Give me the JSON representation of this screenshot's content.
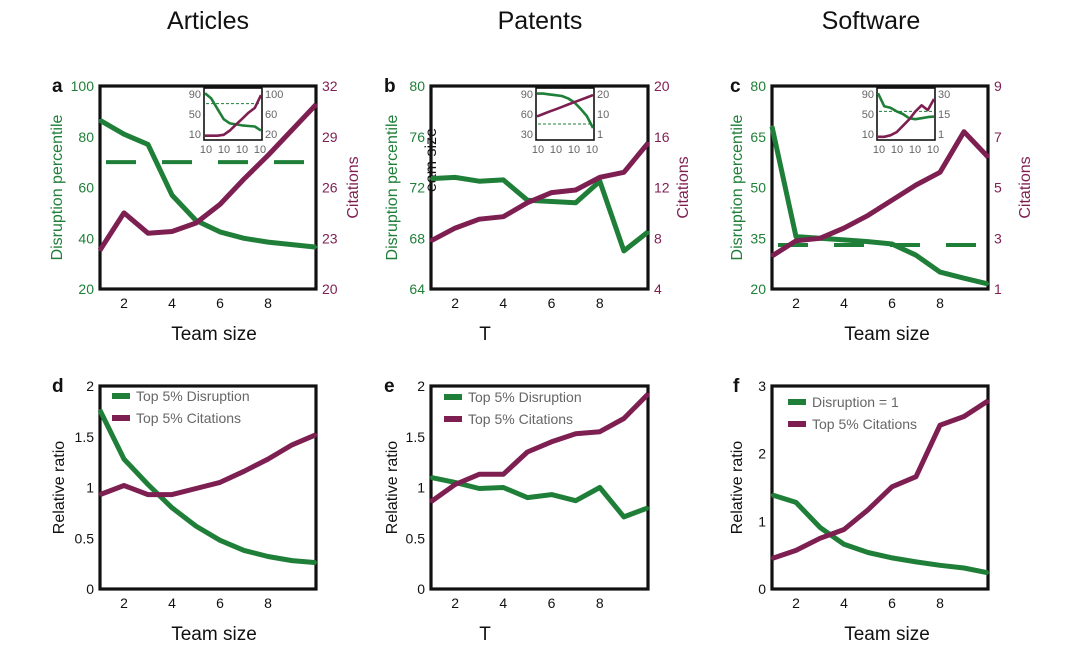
{
  "colors": {
    "green": "#1f7f38",
    "purple": "#7e1f52",
    "frame": "#111111"
  },
  "column_titles": [
    "Articles",
    "Patents",
    "Software"
  ],
  "chart_data": [
    {
      "panel": "a",
      "type": "line",
      "xlabel": "Team size",
      "xticks": [
        2,
        4,
        6,
        8
      ],
      "xlim": [
        1,
        10
      ],
      "ylabel": "Disruption percentile",
      "yticks": [
        "20",
        "40",
        "60",
        "80",
        "100"
      ],
      "ylim": [
        20,
        100
      ],
      "y2label": "Citations",
      "y2ticks": [
        "20",
        "23",
        "26",
        "29",
        "32"
      ],
      "y2lim": [
        20,
        32
      ],
      "x": [
        1,
        2,
        3,
        4,
        5,
        6,
        7,
        8,
        9,
        10
      ],
      "series": [
        {
          "color": "green",
          "axis": "left",
          "values": [
            86.5,
            81,
            77,
            57,
            47,
            42.5,
            40,
            38.5,
            37.5,
            36.5
          ]
        },
        {
          "color": "purple",
          "axis": "right",
          "values": [
            22.3,
            24.5,
            23.3,
            23.4,
            23.9,
            25,
            26.5,
            27.9,
            29.4,
            30.9
          ]
        }
      ],
      "baseline": {
        "color": "green",
        "axis": "left",
        "value": 70
      },
      "inset": {
        "x": [
          1,
          2,
          3,
          4,
          5,
          6,
          7,
          8,
          9,
          10
        ],
        "xticks": [
          "10",
          "10",
          "10",
          "10"
        ],
        "yticks": [
          "10",
          "50",
          "90"
        ],
        "y2ticks": [
          "20",
          "60",
          "100"
        ],
        "ylim": [
          0,
          100
        ],
        "y2lim": [
          0,
          110
        ],
        "series": [
          {
            "color": "green",
            "axis": "left",
            "values": [
              90,
              80,
              60,
              40,
              32,
              30,
              28,
              27,
              26,
              18
            ]
          },
          {
            "color": "purple",
            "axis": "right",
            "values": [
              9,
              9,
              9,
              11,
              20,
              33,
              45,
              58,
              68,
              95
            ]
          }
        ],
        "baseline": {
          "axis": "left",
          "value": 70
        }
      }
    },
    {
      "panel": "b",
      "type": "line",
      "xlabel": "T",
      "xticks": [
        2,
        4,
        6,
        8
      ],
      "xlim": [
        1,
        10
      ],
      "ylabel": "Disruption percentile",
      "yticks": [
        "64",
        "68",
        "72",
        "76",
        "80"
      ],
      "ylim": [
        64,
        80
      ],
      "y2label": "Citations",
      "y2ticks": [
        "4",
        "8",
        "12",
        "16",
        "20"
      ],
      "y2lim": [
        4,
        20
      ],
      "overlay_label": "eam size",
      "x": [
        1,
        2,
        3,
        4,
        5,
        6,
        7,
        8,
        9,
        10
      ],
      "series": [
        {
          "color": "green",
          "axis": "left",
          "values": [
            72.7,
            72.8,
            72.5,
            72.6,
            71,
            70.9,
            70.8,
            72.5,
            67,
            68.5
          ]
        },
        {
          "color": "purple",
          "axis": "right",
          "values": [
            7.8,
            8.8,
            9.5,
            9.7,
            10.8,
            11.6,
            11.8,
            12.8,
            13.2,
            15.5
          ]
        }
      ],
      "inset": {
        "x": [
          1,
          2,
          3,
          4,
          5,
          6,
          7,
          8,
          9,
          10
        ],
        "xticks": [
          "10",
          "10",
          "10",
          "10"
        ],
        "yticks": [
          "30",
          "60",
          "90"
        ],
        "y2ticks": [
          "1",
          "10",
          "20"
        ],
        "ylim": [
          25,
          90
        ],
        "y2lim": [
          0,
          22
        ],
        "series": [
          {
            "color": "green",
            "axis": "left",
            "values": [
              83,
              83,
              82,
              81,
              80,
              77,
              72,
              64,
              55,
              40
            ]
          },
          {
            "color": "purple",
            "axis": "right",
            "values": [
              10,
              11,
              12,
              13,
              14,
              15,
              16,
              17,
              18,
              19
            ]
          }
        ],
        "baseline": {
          "axis": "left",
          "value": 45
        }
      }
    },
    {
      "panel": "c",
      "type": "line",
      "xlabel": "Team size",
      "xticks": [
        2,
        4,
        6,
        8
      ],
      "xlim": [
        1,
        10
      ],
      "ylabel": "Disruption percentile",
      "yticks": [
        "20",
        "35",
        "50",
        "65",
        "80"
      ],
      "ylim": [
        20,
        80
      ],
      "y2label": "Citations",
      "y2ticks": [
        "1",
        "3",
        "5",
        "7",
        "9"
      ],
      "y2lim": [
        1,
        9
      ],
      "x": [
        1,
        2,
        3,
        4,
        5,
        6,
        7,
        8,
        9,
        10
      ],
      "series": [
        {
          "color": "green",
          "axis": "left",
          "values": [
            68,
            35.5,
            35,
            34.5,
            34,
            33.3,
            30,
            25,
            23.2,
            21.5
          ]
        },
        {
          "color": "purple",
          "axis": "right",
          "values": [
            2.3,
            2.9,
            3.0,
            3.4,
            3.9,
            4.5,
            5.1,
            5.6,
            7.2,
            6.2
          ]
        }
      ],
      "baseline": {
        "color": "green",
        "axis": "left",
        "value": 33
      },
      "inset": {
        "x": [
          1,
          2,
          3,
          4,
          5,
          6,
          7,
          8,
          9,
          10
        ],
        "xticks": [
          "10",
          "10",
          "10",
          "10"
        ],
        "yticks": [
          "10",
          "50",
          "90"
        ],
        "y2ticks": [
          "1",
          "15",
          "30"
        ],
        "ylim": [
          0,
          100
        ],
        "y2lim": [
          0,
          33
        ],
        "series": [
          {
            "color": "green",
            "axis": "left",
            "values": [
              90,
              65,
              62,
              55,
              50,
              42,
              40,
              42,
              44,
              45
            ]
          },
          {
            "color": "purple",
            "axis": "right",
            "values": [
              2,
              2,
              3,
              5,
              9,
              13,
              18,
              22,
              19,
              26
            ]
          }
        ],
        "baseline": {
          "axis": "left",
          "value": 55
        }
      }
    },
    {
      "panel": "d",
      "type": "line",
      "xlabel": "Team size",
      "xticks": [
        2,
        4,
        6,
        8
      ],
      "xlim": [
        1,
        10
      ],
      "ylabel": "Relative ratio",
      "yticks": [
        "0",
        "0.5",
        "1",
        "1.5",
        "2"
      ],
      "ylim": [
        0,
        2
      ],
      "x": [
        1,
        2,
        3,
        4,
        5,
        6,
        7,
        8,
        9,
        10
      ],
      "legend": [
        "Top 5% Disruption",
        "Top 5%  Citations"
      ],
      "series": [
        {
          "name": "Top 5% Disruption",
          "color": "green",
          "values": [
            1.76,
            1.28,
            1.03,
            0.8,
            0.62,
            0.48,
            0.38,
            0.32,
            0.28,
            0.26
          ]
        },
        {
          "name": "Top 5%  Citations",
          "color": "purple",
          "values": [
            0.93,
            1.02,
            0.93,
            0.93,
            0.99,
            1.05,
            1.16,
            1.28,
            1.42,
            1.52
          ]
        }
      ]
    },
    {
      "panel": "e",
      "type": "line",
      "xlabel": "T",
      "xticks": [
        2,
        4,
        6,
        8
      ],
      "xlim": [
        1,
        10
      ],
      "ylabel": "Relative ratio",
      "yticks": [
        "0",
        "0.5",
        "1",
        "1.5",
        "2"
      ],
      "ylim": [
        0,
        2
      ],
      "x": [
        1,
        2,
        3,
        4,
        5,
        6,
        7,
        8,
        9,
        10
      ],
      "legend": [
        "Top 5% Disruption",
        "Top 5%  Citations"
      ],
      "series": [
        {
          "name": "Top 5% Disruption",
          "color": "green",
          "values": [
            1.1,
            1.05,
            0.99,
            1.0,
            0.9,
            0.93,
            0.87,
            1.0,
            0.71,
            0.8
          ]
        },
        {
          "name": "Top 5%  Citations",
          "color": "purple",
          "values": [
            0.86,
            1.03,
            1.13,
            1.13,
            1.35,
            1.45,
            1.53,
            1.55,
            1.68,
            1.92
          ]
        }
      ]
    },
    {
      "panel": "f",
      "type": "line",
      "xlabel": "Team size",
      "xticks": [
        2,
        4,
        6,
        8
      ],
      "xlim": [
        1,
        10
      ],
      "ylabel": "Relative ratio",
      "yticks": [
        "0",
        "1",
        "2",
        "3"
      ],
      "ylim": [
        0,
        3
      ],
      "x": [
        1,
        2,
        3,
        4,
        5,
        6,
        7,
        8,
        9,
        10
      ],
      "legend": [
        "Disruption = 1",
        "Top 5%  Citations"
      ],
      "series": [
        {
          "name": "Disruption = 1",
          "color": "green",
          "values": [
            1.39,
            1.28,
            0.91,
            0.66,
            0.54,
            0.46,
            0.4,
            0.35,
            0.31,
            0.24
          ]
        },
        {
          "name": "Top 5%  Citations",
          "color": "purple",
          "values": [
            0.45,
            0.57,
            0.75,
            0.88,
            1.17,
            1.51,
            1.66,
            2.42,
            2.55,
            2.78
          ]
        }
      ]
    }
  ]
}
